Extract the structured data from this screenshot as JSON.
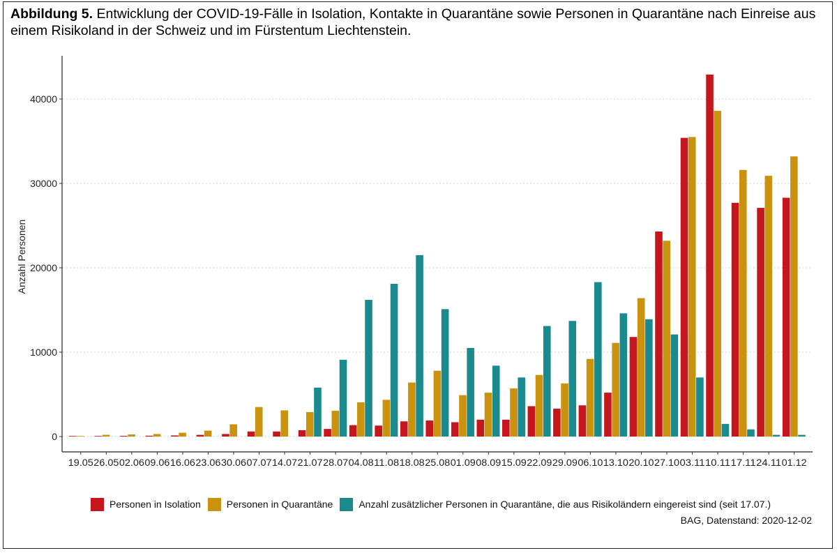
{
  "figure": {
    "label": "Abbildung 5.",
    "title": "Entwicklung der COVID-19-Fälle in Isolation, Kontakte in Quarantäne sowie Personen in Quarantäne nach Einreise aus einem Risikoland in der Schweiz und im Fürstentum Liechtenstein.",
    "source": "BAG, Datenstand: 2020-12-02"
  },
  "chart_data": {
    "type": "bar",
    "ylabel": "Anzahl Personen",
    "xlabel": "",
    "ylim": [
      0,
      45000
    ],
    "yticks": [
      0,
      10000,
      20000,
      30000,
      40000
    ],
    "grid": "horizontal-dotted",
    "legend_position": "bottom",
    "categories": [
      "19.05",
      "26.05",
      "02.06",
      "09.06",
      "16.06",
      "23.06",
      "30.06",
      "07.07",
      "14.07",
      "21.07",
      "28.07",
      "04.08",
      "11.08",
      "18.08",
      "25.08",
      "01.09",
      "08.09",
      "15.09",
      "22.09",
      "29.09",
      "06.10",
      "13.10",
      "20.10",
      "27.10",
      "03.11",
      "10.11",
      "17.11",
      "24.11",
      "01.12"
    ],
    "series": [
      {
        "name": "Personen in Isolation",
        "color": "#C4161C",
        "values": [
          30,
          60,
          80,
          100,
          130,
          200,
          300,
          600,
          600,
          750,
          900,
          1350,
          1300,
          1800,
          1900,
          1700,
          2000,
          2000,
          3600,
          3300,
          3700,
          5200,
          11800,
          24300,
          35400,
          42900,
          27700,
          27100,
          28300
        ]
      },
      {
        "name": "Personen in Quarantäne",
        "color": "#C9920F",
        "values": [
          50,
          200,
          250,
          300,
          450,
          700,
          1450,
          3500,
          3100,
          2900,
          3050,
          4050,
          4350,
          6400,
          7800,
          4900,
          5200,
          5700,
          7300,
          6300,
          9200,
          11100,
          16400,
          23200,
          35500,
          38600,
          31600,
          30900,
          33200
        ]
      },
      {
        "name": "Anzahl zusätzlicher Personen in Quarantäne, die aus Risikoländern eingereist sind (seit 17.07.)",
        "color": "#1B8A8F",
        "values": [
          null,
          null,
          null,
          null,
          null,
          null,
          null,
          null,
          null,
          5800,
          9100,
          16200,
          18100,
          21500,
          15100,
          10500,
          8400,
          7000,
          13100,
          13700,
          18300,
          14600,
          13900,
          12100,
          7000,
          1500,
          850,
          200,
          200
        ]
      }
    ]
  }
}
